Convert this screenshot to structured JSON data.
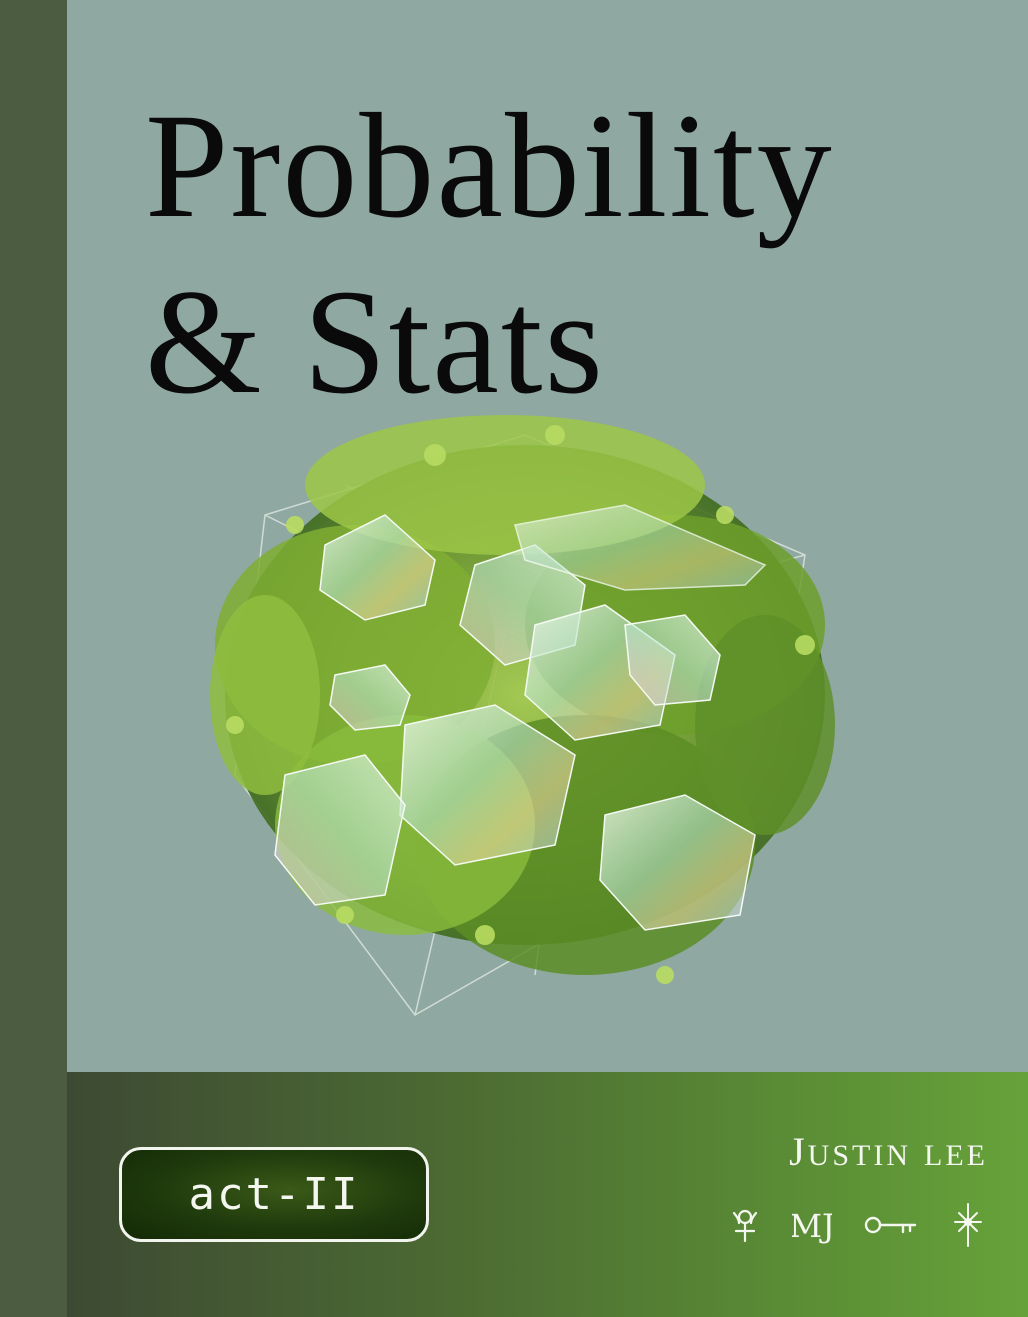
{
  "cover": {
    "title_line1": "Probability",
    "title_line2": "& Stats",
    "badge_label": "act-II",
    "author_first_initial": "J",
    "author_first_rest": "USTIN",
    "author_last": "LEE",
    "monogram": "MJ"
  },
  "colors": {
    "spine": "#4b5c40",
    "background": "#8fa8a2",
    "footer_start": "#3d4a33",
    "footer_end": "#66a23a",
    "badge_fill": "#1f3a0c",
    "text_light": "#f4f6f0"
  },
  "icons": [
    "flower-sigil-icon",
    "monogram-icon",
    "key-icon",
    "sparkle-star-icon"
  ]
}
